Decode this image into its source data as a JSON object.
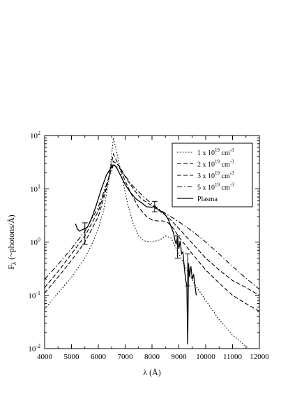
{
  "chart_data": {
    "type": "line",
    "title": "",
    "xlabel": "λ (Å)",
    "ylabel": "F_λ (~photons/Å)",
    "ylabel_parts": {
      "main": "F",
      "sub": "λ",
      "rest": " (~photons/Å)"
    },
    "xlim": [
      4000,
      12000
    ],
    "ylim": [
      0.01,
      100
    ],
    "yscale": "log",
    "grid": false,
    "legend_position": "top-right",
    "x_ticks": [
      4000,
      5000,
      6000,
      7000,
      8000,
      9000,
      10000,
      11000,
      12000
    ],
    "x_tick_labels": [
      "4000",
      "5000",
      "6000",
      "7000",
      "8000",
      "9000",
      "10000",
      "11000",
      "12000"
    ],
    "y_ticks": [
      0.01,
      0.1,
      1,
      10,
      100
    ],
    "y_tick_labels": [
      {
        "base": "10",
        "exp": "-2"
      },
      {
        "base": "10",
        "exp": "-1"
      },
      {
        "base": "10",
        "exp": "0"
      },
      {
        "base": "10",
        "exp": "1"
      },
      {
        "base": "10",
        "exp": "2"
      }
    ],
    "series": [
      {
        "name": "1 x 10^19 cm^-3",
        "legend": {
          "prefix": "1 x 10",
          "exp1": "19",
          "mid": " cm",
          "exp2": "-3"
        },
        "style": "dotted",
        "points": [
          [
            4000,
            0.055
          ],
          [
            4500,
            0.11
          ],
          [
            5000,
            0.22
          ],
          [
            5500,
            0.5
          ],
          [
            5800,
            1.0
          ],
          [
            6000,
            1.8
          ],
          [
            6200,
            4.0
          ],
          [
            6400,
            15
          ],
          [
            6560,
            90
          ],
          [
            6700,
            45
          ],
          [
            6900,
            15
          ],
          [
            7100,
            5
          ],
          [
            7300,
            2.2
          ],
          [
            7500,
            1.3
          ],
          [
            7700,
            1.05
          ],
          [
            8000,
            1.0
          ],
          [
            8300,
            1.1
          ],
          [
            8500,
            1.3
          ],
          [
            8700,
            1.2
          ],
          [
            9000,
            0.6
          ],
          [
            9300,
            0.3
          ],
          [
            9600,
            0.16
          ],
          [
            10000,
            0.08
          ],
          [
            10500,
            0.035
          ],
          [
            11000,
            0.018
          ],
          [
            11500,
            0.011
          ],
          [
            12000,
            0.007
          ]
        ]
      },
      {
        "name": "2 x 10^19 cm^-3",
        "legend": {
          "prefix": "2 x 10",
          "exp1": "19",
          "mid": " cm",
          "exp2": "-3"
        },
        "style": "dashed",
        "points": [
          [
            4000,
            0.11
          ],
          [
            4500,
            0.22
          ],
          [
            5000,
            0.45
          ],
          [
            5500,
            1.0
          ],
          [
            6000,
            3.0
          ],
          [
            6300,
            10
          ],
          [
            6560,
            45
          ],
          [
            6800,
            25
          ],
          [
            7000,
            14
          ],
          [
            7200,
            8.5
          ],
          [
            7500,
            4.5
          ],
          [
            7800,
            3.0
          ],
          [
            8000,
            2.6
          ],
          [
            8200,
            2.5
          ],
          [
            8400,
            2.5
          ],
          [
            8600,
            2.3
          ],
          [
            8800,
            1.8
          ],
          [
            9000,
            1.25
          ],
          [
            9500,
            0.6
          ],
          [
            10000,
            0.3
          ],
          [
            10500,
            0.17
          ],
          [
            11000,
            0.1
          ],
          [
            11500,
            0.07
          ],
          [
            12000,
            0.05
          ]
        ]
      },
      {
        "name": "3 x 10^19 cm^-3",
        "legend": {
          "prefix": "3 x 10",
          "exp1": "19",
          "mid": " cm",
          "exp2": "-3"
        },
        "style": "dashed",
        "points": [
          [
            4000,
            0.14
          ],
          [
            4500,
            0.28
          ],
          [
            5000,
            0.6
          ],
          [
            5500,
            1.3
          ],
          [
            6000,
            3.8
          ],
          [
            6300,
            11
          ],
          [
            6560,
            33
          ],
          [
            6800,
            26
          ],
          [
            7000,
            17
          ],
          [
            7300,
            10
          ],
          [
            7600,
            6.5
          ],
          [
            8000,
            4.8
          ],
          [
            8300,
            3.8
          ],
          [
            8600,
            2.9
          ],
          [
            8800,
            2.3
          ],
          [
            9000,
            1.8
          ],
          [
            9500,
            0.95
          ],
          [
            10000,
            0.5
          ],
          [
            10500,
            0.3
          ],
          [
            11000,
            0.19
          ],
          [
            11500,
            0.14
          ],
          [
            12000,
            0.1
          ]
        ]
      },
      {
        "name": "5 x 10^19 cm^-3",
        "legend": {
          "prefix": "5 x 10",
          "exp1": "19",
          "mid": " cm",
          "exp2": "-3"
        },
        "style": "dashdot",
        "points": [
          [
            4000,
            0.2
          ],
          [
            4500,
            0.38
          ],
          [
            5000,
            0.75
          ],
          [
            5500,
            1.6
          ],
          [
            6000,
            4.5
          ],
          [
            6300,
            12
          ],
          [
            6560,
            28
          ],
          [
            6800,
            24
          ],
          [
            7000,
            17.5
          ],
          [
            7300,
            11
          ],
          [
            7700,
            7
          ],
          [
            8000,
            5.2
          ],
          [
            8300,
            4
          ],
          [
            8600,
            3.2
          ],
          [
            8800,
            2.8
          ],
          [
            9000,
            2.4
          ],
          [
            9500,
            1.6
          ],
          [
            10000,
            1.0
          ],
          [
            10500,
            0.6
          ],
          [
            11000,
            0.35
          ],
          [
            11500,
            0.21
          ],
          [
            12000,
            0.13
          ]
        ]
      },
      {
        "name": "Plasma",
        "legend": {
          "prefix": "Plasma",
          "exp1": "",
          "mid": "",
          "exp2": ""
        },
        "style": "solid",
        "points": [
          [
            5150,
            2.2
          ],
          [
            5220,
            1.75
          ],
          [
            5300,
            1.6
          ],
          [
            5400,
            1.7
          ],
          [
            5500,
            1.8
          ],
          [
            5600,
            1.9
          ],
          [
            5750,
            2.8
          ],
          [
            5900,
            4.5
          ],
          [
            6100,
            9.5
          ],
          [
            6300,
            18
          ],
          [
            6500,
            26
          ],
          [
            6600,
            28
          ],
          [
            6700,
            24
          ],
          [
            6850,
            17
          ],
          [
            7000,
            12
          ],
          [
            7200,
            8.5
          ],
          [
            7400,
            6.5
          ],
          [
            7600,
            5.5
          ],
          [
            7800,
            4.6
          ],
          [
            8000,
            4.5
          ],
          [
            8100,
            4.8
          ],
          [
            8200,
            4.2
          ],
          [
            8300,
            3.9
          ],
          [
            8400,
            3.6
          ],
          [
            8500,
            3.2
          ],
          [
            8600,
            2.7
          ],
          [
            8700,
            2.0
          ],
          [
            8800,
            1.5
          ],
          [
            8850,
            1.1
          ],
          [
            8900,
            0.9
          ],
          [
            8950,
            1.3
          ],
          [
            9000,
            0.75
          ],
          [
            9050,
            1.05
          ],
          [
            9100,
            0.6
          ],
          [
            9150,
            0.65
          ],
          [
            9200,
            0.35
          ],
          [
            9250,
            0.2
          ],
          [
            9300,
            0.15
          ],
          [
            9330,
            0.012
          ],
          [
            9360,
            0.4
          ],
          [
            9400,
            0.22
          ],
          [
            9450,
            0.35
          ],
          [
            9500,
            0.2
          ],
          [
            9550,
            0.25
          ],
          [
            9600,
            0.15
          ],
          [
            9650,
            0.1
          ]
        ]
      }
    ],
    "error_bars": [
      {
        "x": 5500,
        "low": 0.9,
        "high": 2.3
      },
      {
        "x": 8100,
        "low": 3.7,
        "high": 5.8
      },
      {
        "x": 8950,
        "low": 0.5,
        "high": 1.3
      },
      {
        "x": 9330,
        "low": 0.15,
        "high": 0.6
      }
    ]
  }
}
